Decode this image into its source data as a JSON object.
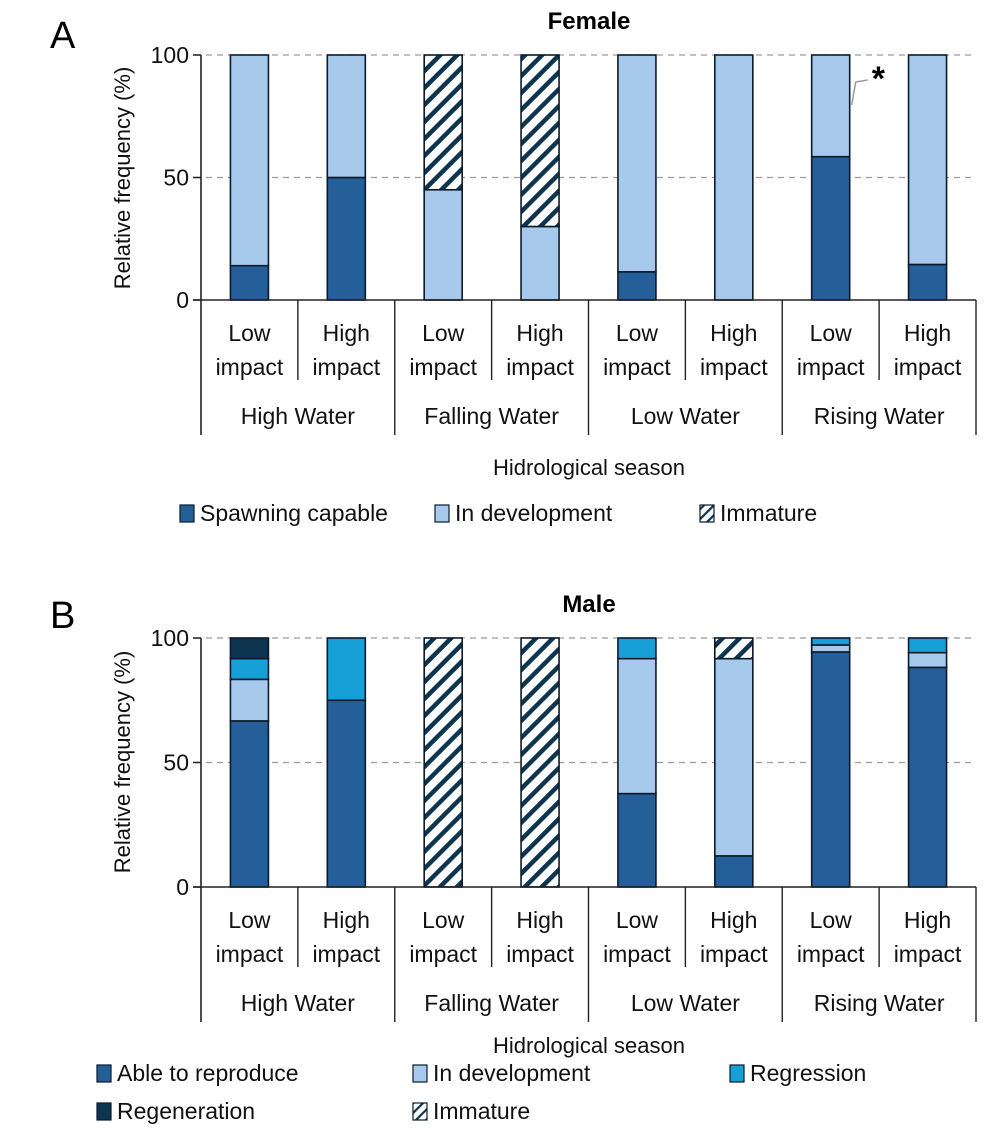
{
  "panels": [
    {
      "letter": "A"
    },
    {
      "letter": "B"
    }
  ],
  "colors": {
    "spawning_capable": "#255f99",
    "in_development": "#a7c9eb",
    "regression": "#17a0d8",
    "regeneration": "#0e3550",
    "immature_hatch": "#0e3550",
    "outline": "#0b1a2a",
    "grid": "#9a9a9a"
  },
  "chart_data": [
    {
      "type": "bar",
      "stacked": true,
      "title": "Female",
      "xlabel": "Hidrological season",
      "ylabel": "Relative frequency (%)",
      "ylim": [
        0,
        100
      ],
      "yticks": [
        "0",
        "50",
        "100"
      ],
      "grid": "horizontal dashed",
      "legend_position": "bottom",
      "seasons": [
        "High Water",
        "Falling Water",
        "Low Water",
        "Rising Water"
      ],
      "categories": [
        {
          "line1": "Low",
          "line2": "impact"
        },
        {
          "line1": "High",
          "line2": "impact"
        },
        {
          "line1": "Low",
          "line2": "impact"
        },
        {
          "line1": "High",
          "line2": "impact"
        },
        {
          "line1": "Low",
          "line2": "impact"
        },
        {
          "line1": "High",
          "line2": "impact"
        },
        {
          "line1": "Low",
          "line2": "impact"
        },
        {
          "line1": "High",
          "line2": "impact"
        }
      ],
      "series": [
        {
          "name": "Spawning capable",
          "key": "spawning_capable",
          "values": [
            14,
            50,
            0,
            0,
            11.5,
            0,
            58.5,
            14.5
          ]
        },
        {
          "name": "In development",
          "key": "in_development",
          "values": [
            86,
            50,
            45,
            30,
            88.5,
            100,
            41.5,
            85.5
          ]
        },
        {
          "name": "Immature",
          "key": "immature_hatch",
          "hatched": true,
          "values": [
            0,
            0,
            55,
            70,
            0,
            0,
            0,
            0
          ]
        }
      ],
      "annotations": [
        {
          "text": "*",
          "category_index": 6
        }
      ]
    },
    {
      "type": "bar",
      "stacked": true,
      "title": "Male",
      "xlabel": "Hidrological season",
      "ylabel": "Relative frequency (%)",
      "ylim": [
        0,
        100
      ],
      "yticks": [
        "0",
        "50",
        "100"
      ],
      "grid": "horizontal dashed",
      "legend_position": "bottom",
      "seasons": [
        "High Water",
        "Falling Water",
        "Low Water",
        "Rising Water"
      ],
      "categories": [
        {
          "line1": "Low",
          "line2": "impact"
        },
        {
          "line1": "High",
          "line2": "impact"
        },
        {
          "line1": "Low",
          "line2": "impact"
        },
        {
          "line1": "High",
          "line2": "impact"
        },
        {
          "line1": "Low",
          "line2": "impact"
        },
        {
          "line1": "High",
          "line2": "impact"
        },
        {
          "line1": "Low",
          "line2": "impact"
        },
        {
          "line1": "High",
          "line2": "impact"
        }
      ],
      "series": [
        {
          "name": "Able to reproduce",
          "key": "spawning_capable",
          "values": [
            66.7,
            75,
            0,
            0,
            37.5,
            12.5,
            94.4,
            88.2
          ]
        },
        {
          "name": "In development",
          "key": "in_development",
          "values": [
            16.7,
            0,
            0,
            0,
            54.2,
            79.2,
            2.8,
            5.9
          ]
        },
        {
          "name": "Regression",
          "key": "regression",
          "values": [
            8.3,
            25,
            0,
            0,
            8.3,
            0,
            2.8,
            5.9
          ]
        },
        {
          "name": "Regeneration",
          "key": "regeneration",
          "values": [
            8.3,
            0,
            0,
            0,
            0,
            0,
            0,
            0
          ]
        },
        {
          "name": "Immature",
          "key": "immature_hatch",
          "hatched": true,
          "values": [
            0,
            0,
            100,
            100,
            0,
            8.3,
            0,
            0
          ]
        }
      ],
      "legend_order": [
        "Able to reproduce",
        "In development",
        "Regression",
        "Regeneration",
        "Immature"
      ]
    }
  ]
}
